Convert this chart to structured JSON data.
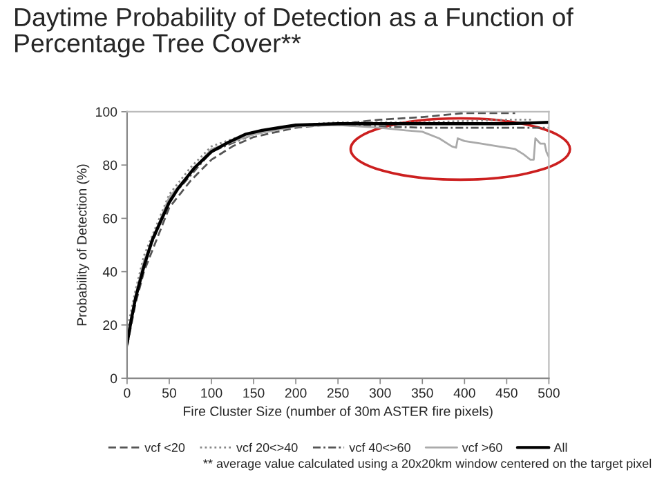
{
  "chart_data": {
    "type": "line",
    "title": "Daytime Probability of Detection as a Function of\nPercentage Tree Cover**",
    "xlabel": "Fire Cluster Size (number of 30m ASTER fire pixels)",
    "ylabel": "Probability of Detection (%)",
    "xlim": [
      0,
      500
    ],
    "ylim": [
      0,
      100
    ],
    "xticks": [
      0,
      50,
      100,
      150,
      200,
      250,
      300,
      350,
      400,
      450,
      500
    ],
    "yticks": [
      0,
      20,
      40,
      60,
      80,
      100
    ],
    "grid": false,
    "legend": "bottom",
    "marker": "none",
    "series": [
      {
        "name": "vcf <20",
        "color": "#555555",
        "line_style": "dashed",
        "x": [
          0,
          10,
          20,
          50,
          75,
          100,
          125,
          150,
          200,
          250,
          300,
          350,
          400,
          460
        ],
        "values": [
          12,
          28,
          40,
          64,
          74,
          82,
          87,
          90.5,
          94,
          95.5,
          97,
          98,
          99.5,
          99.5
        ]
      },
      {
        "name": "vcf 20<>40",
        "color": "#888888",
        "line_style": "dotted",
        "x": [
          0,
          10,
          20,
          50,
          75,
          100,
          150,
          200,
          250,
          300,
          350,
          400,
          450,
          480
        ],
        "values": [
          18,
          33,
          46,
          69,
          79,
          87,
          92.5,
          95,
          96,
          96,
          96,
          96.5,
          97,
          97
        ]
      },
      {
        "name": "vcf 40<>60",
        "color": "#555555",
        "line_style": "dashdot",
        "x": [
          0,
          10,
          20,
          50,
          100,
          150,
          200,
          250,
          300,
          350,
          400,
          450,
          500
        ],
        "values": [
          14,
          30,
          43,
          67,
          85,
          91.5,
          95,
          95,
          94.5,
          94,
          94,
          94,
          94
        ]
      },
      {
        "name": "vcf >60",
        "color": "#aaaaaa",
        "line_style": "solid",
        "x": [
          0,
          10,
          20,
          50,
          100,
          150,
          200,
          250,
          300,
          330,
          350,
          370,
          385,
          390,
          392,
          400,
          420,
          440,
          460,
          470,
          478,
          482,
          484,
          490,
          495,
          497,
          500
        ],
        "values": [
          15,
          31,
          44,
          68,
          86,
          91.5,
          94.5,
          95,
          94,
          93,
          92.5,
          90,
          87,
          86.5,
          90,
          89,
          88,
          87,
          86,
          84,
          82,
          82,
          90,
          88,
          88,
          85,
          83
        ]
      },
      {
        "name": "All",
        "color": "#000000",
        "line_style": "solid",
        "x": [
          0,
          5,
          10,
          20,
          30,
          40,
          50,
          60,
          70,
          80,
          90,
          100,
          120,
          140,
          160,
          180,
          200,
          250,
          300,
          350,
          400,
          450,
          500
        ],
        "values": [
          13,
          22,
          30,
          42,
          52,
          59,
          66,
          71,
          75,
          79,
          82,
          85,
          88.5,
          91.5,
          93,
          94,
          95,
          95.5,
          95.5,
          95.5,
          95.5,
          95.5,
          96
        ]
      }
    ],
    "annotations": [
      "** average value calculated using a 20x20km window centered on the target pixel"
    ]
  }
}
